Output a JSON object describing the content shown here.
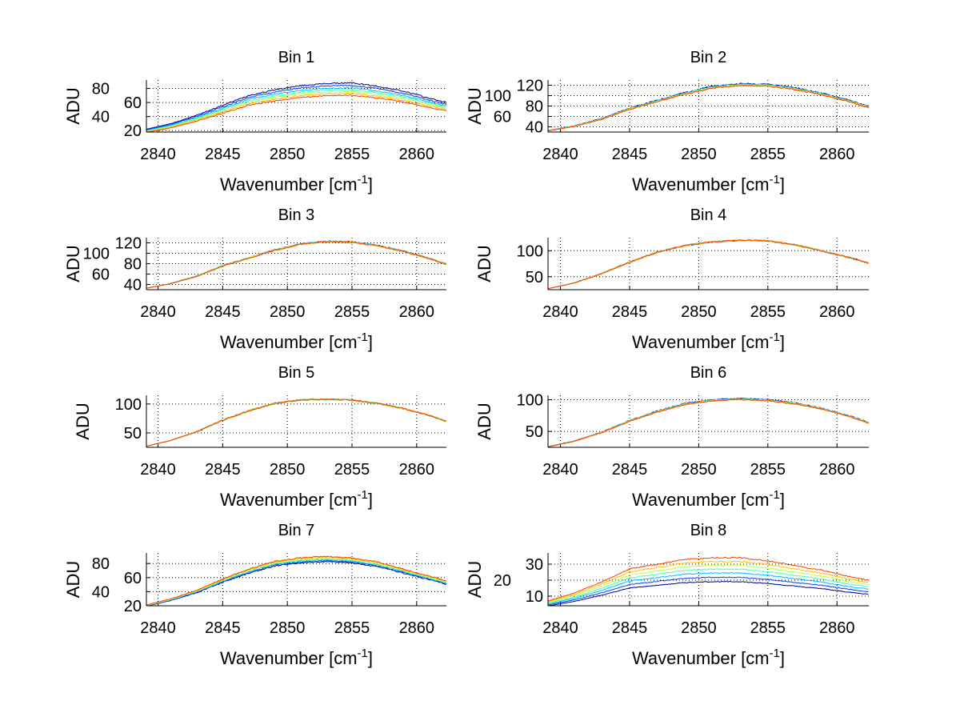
{
  "chart_data": {
    "type": "line",
    "layout": "4 rows x 2 columns",
    "xlabel": "Wavenumber [cm",
    "xlabel_sup": "-1",
    "xlabel_close": "]",
    "ylabel": "ADU",
    "xlim": [
      2839.1,
      2862.3
    ],
    "xticks": [
      2840,
      2845,
      2850,
      2855,
      2860
    ],
    "grid": true,
    "colormap": [
      "#00008f",
      "#0040ff",
      "#00c0ff",
      "#40ffbf",
      "#c0ff40",
      "#ffc000",
      "#ff4000"
    ],
    "x": [
      2839.1,
      2841,
      2843,
      2845,
      2847,
      2849,
      2851,
      2853,
      2855,
      2857,
      2859,
      2861,
      2862.3
    ],
    "panels": [
      {
        "title": "Bin 1",
        "ylim": [
          18,
          92
        ],
        "yticks": [
          20,
          40,
          60,
          80
        ],
        "base": [
          22,
          30,
          42,
          56,
          70,
          78,
          84,
          87,
          88,
          83,
          76,
          66,
          60
        ],
        "series_scale": [
          1.0,
          0.96,
          0.92,
          0.89,
          0.86,
          0.83,
          0.8
        ]
      },
      {
        "title": "Bin 2",
        "ylim": [
          30,
          130
        ],
        "yticks": [
          40,
          60,
          80,
          100,
          120
        ],
        "base": [
          33,
          42,
          56,
          76,
          91,
          106,
          118,
          123,
          122,
          115,
          104,
          90,
          79
        ],
        "series_scale": [
          1.0,
          0.995,
          0.99,
          0.985,
          0.98,
          0.975,
          0.97
        ]
      },
      {
        "title": "Bin 3",
        "ylim": [
          30,
          130
        ],
        "yticks": [
          40,
          60,
          80,
          100,
          120
        ],
        "base": [
          33,
          42,
          56,
          76,
          91,
          106,
          118,
          123,
          122,
          115,
          104,
          90,
          79
        ],
        "series_scale": [
          1.0,
          1.0,
          0.998,
          0.996,
          0.995,
          0.994,
          0.993
        ]
      },
      {
        "title": "Bin 4",
        "ylim": [
          25,
          125
        ],
        "yticks": [
          50,
          100
        ],
        "base": [
          27,
          38,
          56,
          78,
          97,
          110,
          117,
          120,
          119,
          111,
          99,
          86,
          76
        ],
        "series_scale": [
          1.0,
          1.0,
          1.0,
          1.0,
          1.0,
          1.0,
          1.0
        ]
      },
      {
        "title": "Bin 5",
        "ylim": [
          25,
          115
        ],
        "yticks": [
          50,
          100
        ],
        "base": [
          27,
          37,
          52,
          72,
          88,
          101,
          107,
          108,
          107,
          101,
          92,
          80,
          70
        ],
        "series_scale": [
          1.0,
          1.0,
          1.0,
          1.0,
          1.0,
          1.0,
          1.0
        ]
      },
      {
        "title": "Bin 6",
        "ylim": [
          25,
          107
        ],
        "yticks": [
          50,
          100
        ],
        "base": [
          26,
          35,
          49,
          67,
          82,
          94,
          100,
          102,
          100,
          95,
          86,
          74,
          64
        ],
        "series_scale": [
          1.0,
          1.0,
          0.995,
          0.99,
          0.99,
          0.985,
          0.985
        ]
      },
      {
        "title": "Bin 7",
        "ylim": [
          20,
          95
        ],
        "yticks": [
          20,
          40,
          60,
          80
        ],
        "base": [
          21,
          30,
          42,
          58,
          72,
          83,
          88,
          90,
          88,
          82,
          72,
          62,
          55
        ],
        "series_scale": [
          0.92,
          0.935,
          0.95,
          0.96,
          0.975,
          0.99,
          1.0
        ]
      },
      {
        "title": "Bin 8",
        "ylim": [
          4,
          37
        ],
        "yticks": [
          10,
          20,
          30
        ],
        "base": [
          7,
          12,
          19,
          27,
          30,
          33,
          34,
          34,
          32,
          29,
          26,
          22,
          20
        ],
        "series_scale": [
          0.56,
          0.64,
          0.72,
          0.79,
          0.86,
          0.93,
          1.0
        ]
      }
    ]
  }
}
